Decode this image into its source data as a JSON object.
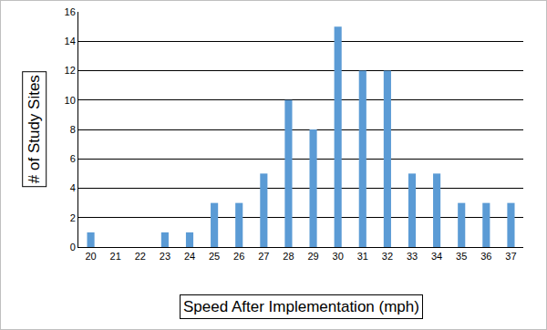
{
  "chart_data": {
    "type": "bar",
    "x_label": "Speed After Implementation (mph)",
    "y_label": "# of Study Sites",
    "categories": [
      "20",
      "21",
      "22",
      "23",
      "24",
      "25",
      "26",
      "27",
      "28",
      "29",
      "30",
      "31",
      "32",
      "33",
      "34",
      "35",
      "36",
      "37"
    ],
    "values": [
      1,
      0,
      0,
      1,
      1,
      3,
      3,
      5,
      10,
      8,
      15,
      12,
      12,
      5,
      5,
      3,
      3,
      3
    ],
    "color": "#5b9bd5",
    "ylim": [
      0,
      16
    ],
    "yticks": [
      0,
      2,
      4,
      6,
      8,
      10,
      12,
      14,
      16
    ],
    "grid": true
  }
}
